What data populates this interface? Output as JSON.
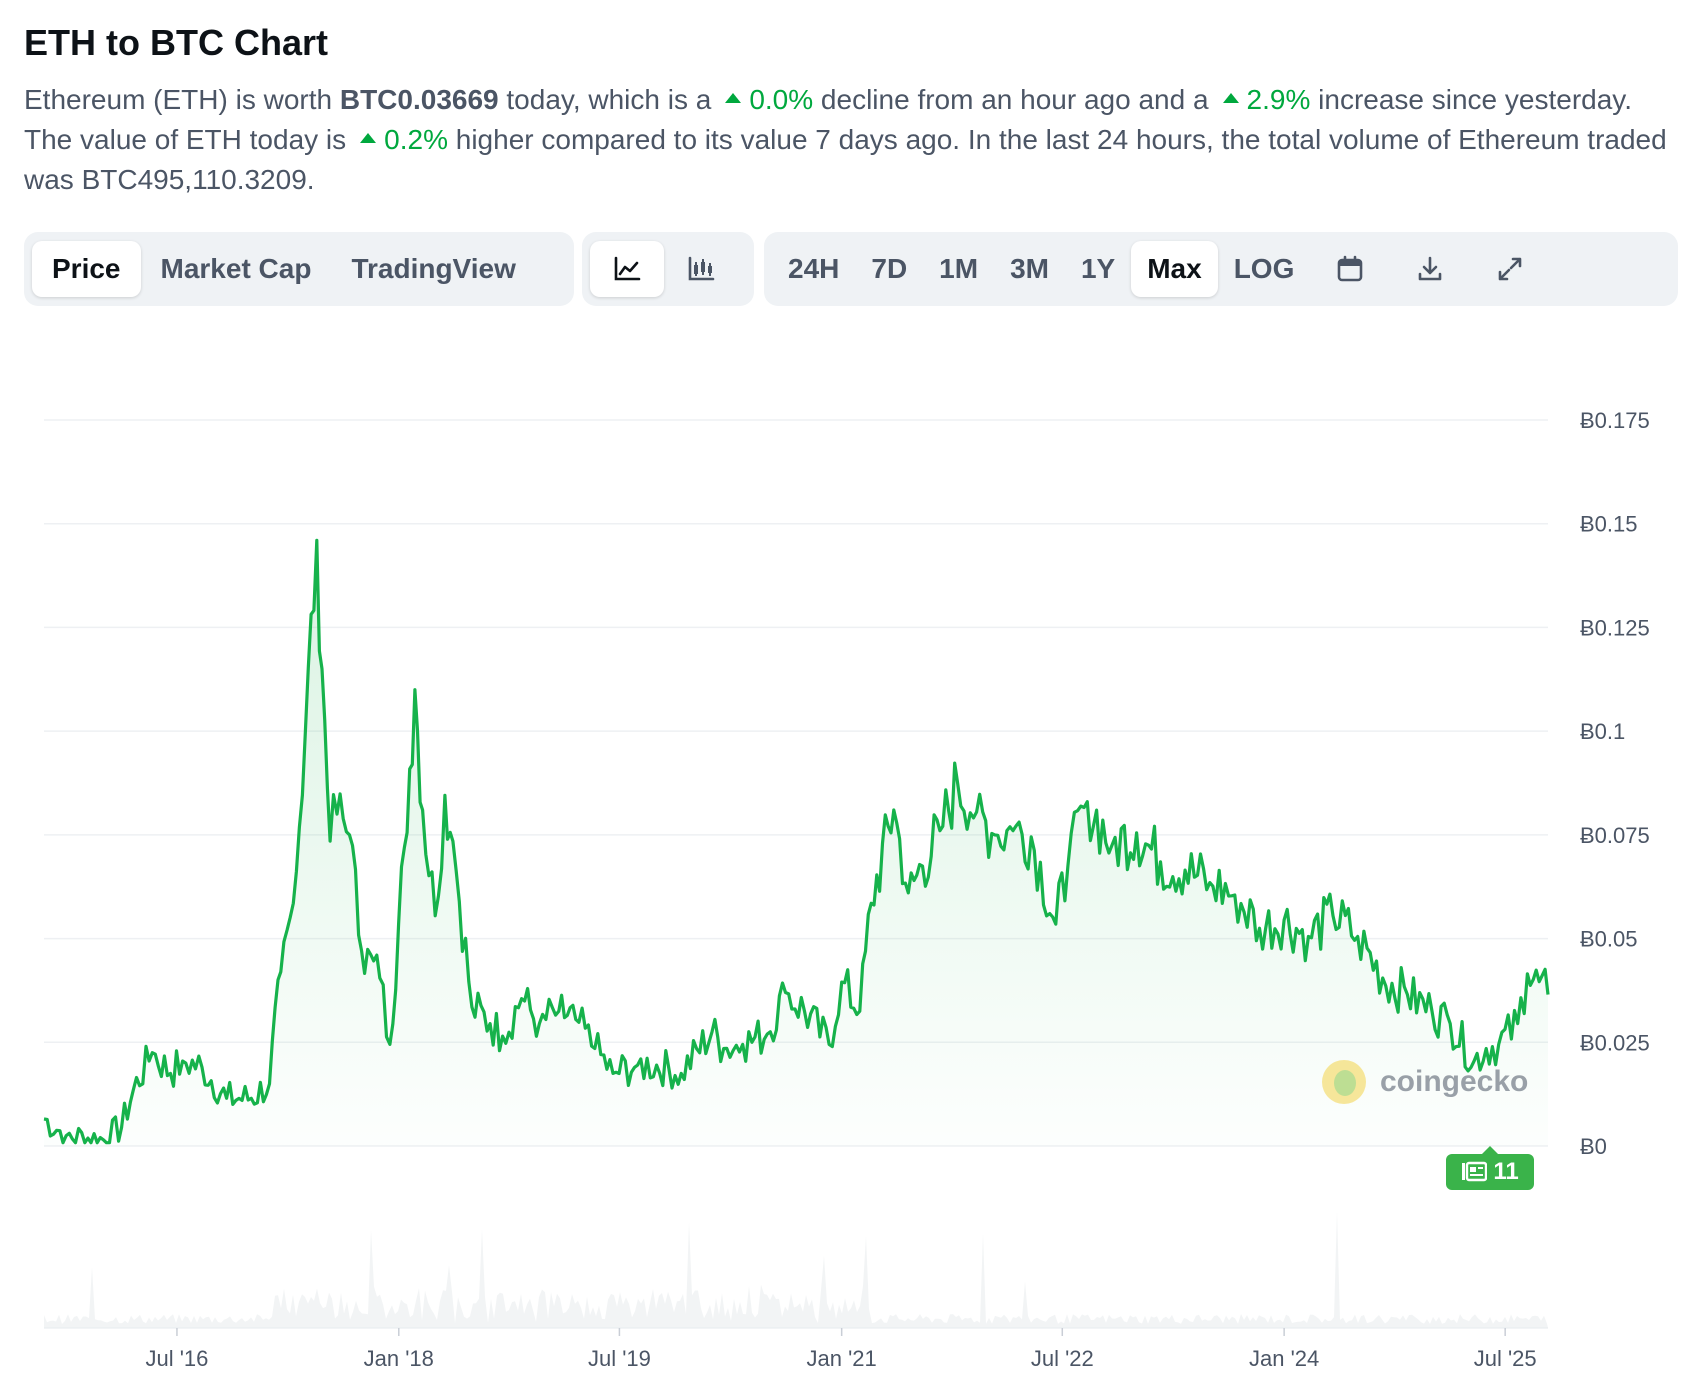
{
  "header": {
    "title": "ETH to BTC Chart",
    "desc": {
      "p1": "Ethereum (ETH) is worth ",
      "price": "BTC0.03669",
      "p2": " today, which is a",
      "hour_pct": "0.0%",
      "p3": " decline from an hour ago and a",
      "day_pct": "2.9%",
      "p4": " increase since yesterday. The value of ETH today is",
      "week_pct": "0.2%",
      "p5": " higher compared to its value 7 days ago. In the last 24 hours, the total volume of Ethereum traded was BTC495,110.3209."
    }
  },
  "toolbar": {
    "view_tabs": [
      "Price",
      "Market Cap",
      "TradingView"
    ],
    "active_view": "Price",
    "chart_types": [
      {
        "name": "line-chart-icon",
        "active": true
      },
      {
        "name": "candlestick-icon",
        "active": false
      }
    ],
    "ranges": [
      "24H",
      "7D",
      "1M",
      "3M",
      "1Y",
      "Max",
      "LOG"
    ],
    "active_range": "Max",
    "icons": [
      "calendar-icon",
      "download-icon",
      "fullscreen-icon"
    ]
  },
  "colors": {
    "line": "#16b24b",
    "accent": "#00a83e",
    "grid": "#eef0f3",
    "badge": "#3ab34a"
  },
  "watermark": "coingecko",
  "news_badge": "11",
  "chart_data": {
    "type": "area",
    "title": "",
    "xlabel": "",
    "ylabel": "",
    "x_range": [
      "2015-08-07",
      "2025-10-15"
    ],
    "ylim": [
      0,
      0.175
    ],
    "y_ticks": [
      0,
      0.025,
      0.05,
      0.075,
      0.1,
      0.125,
      0.15,
      0.175
    ],
    "y_tick_labels": [
      "Ƀ0",
      "Ƀ0.025",
      "Ƀ0.05",
      "Ƀ0.075",
      "Ƀ0.1",
      "Ƀ0.125",
      "Ƀ0.15",
      "Ƀ0.175"
    ],
    "x_ticks": [
      {
        "date": "2016-07-01",
        "label": "Jul '16"
      },
      {
        "date": "2018-01-01",
        "label": "Jan '18"
      },
      {
        "date": "2019-07-01",
        "label": "Jul '19"
      },
      {
        "date": "2021-01-01",
        "label": "Jan '21"
      },
      {
        "date": "2022-07-01",
        "label": "Jul '22"
      },
      {
        "date": "2024-01-01",
        "label": "Jan '24"
      },
      {
        "date": "2025-07-01",
        "label": "Jul '25"
      }
    ],
    "grid": true,
    "series": [
      {
        "name": "",
        "x": [
          "2015-08-07",
          "2015-10-01",
          "2016-01-01",
          "2016-02-15",
          "2016-03-15",
          "2016-05-01",
          "2016-06-15",
          "2016-07-15",
          "2016-09-01",
          "2016-11-01",
          "2017-01-01",
          "2017-02-15",
          "2017-03-15",
          "2017-04-15",
          "2017-05-15",
          "2017-06-12",
          "2017-06-25",
          "2017-07-15",
          "2017-08-01",
          "2017-09-01",
          "2017-10-01",
          "2017-11-15",
          "2017-12-10",
          "2018-01-15",
          "2018-02-10",
          "2018-03-01",
          "2018-04-01",
          "2018-04-25",
          "2018-05-15",
          "2018-07-01",
          "2018-08-15",
          "2018-09-15",
          "2018-11-01",
          "2018-12-15",
          "2019-02-01",
          "2019-03-15",
          "2019-05-01",
          "2019-06-15",
          "2019-08-15",
          "2019-10-01",
          "2019-12-01",
          "2020-02-15",
          "2020-03-15",
          "2020-05-01",
          "2020-07-01",
          "2020-08-15",
          "2020-10-01",
          "2020-12-01",
          "2021-01-01",
          "2021-02-15",
          "2021-03-15",
          "2021-05-10",
          "2021-06-15",
          "2021-07-20",
          "2021-09-01",
          "2021-10-15",
          "2021-12-01",
          "2022-01-15",
          "2022-03-01",
          "2022-04-15",
          "2022-06-15",
          "2022-07-15",
          "2022-09-01",
          "2022-11-01",
          "2023-01-01",
          "2023-03-01",
          "2023-05-01",
          "2023-07-01",
          "2023-09-01",
          "2023-11-01",
          "2024-01-01",
          "2024-03-01",
          "2024-05-01",
          "2024-07-01",
          "2024-09-01",
          "2024-11-01",
          "2025-01-01",
          "2025-02-15",
          "2025-04-15",
          "2025-05-15",
          "2025-06-15",
          "2025-08-01",
          "2025-08-25",
          "2025-10-15"
        ],
        "values": [
          0.0065,
          0.0025,
          0.0015,
          0.0045,
          0.0135,
          0.0225,
          0.0175,
          0.0205,
          0.019,
          0.0115,
          0.0115,
          0.015,
          0.042,
          0.0585,
          0.1,
          0.146,
          0.115,
          0.0735,
          0.08,
          0.075,
          0.047,
          0.0405,
          0.0245,
          0.072,
          0.11,
          0.081,
          0.0555,
          0.0845,
          0.0735,
          0.0335,
          0.0295,
          0.0265,
          0.0355,
          0.0295,
          0.0325,
          0.0305,
          0.0235,
          0.0175,
          0.0195,
          0.0195,
          0.0175,
          0.0275,
          0.0235,
          0.0245,
          0.027,
          0.037,
          0.0325,
          0.0245,
          0.0395,
          0.0325,
          0.0585,
          0.081,
          0.061,
          0.0675,
          0.076,
          0.0875,
          0.0805,
          0.075,
          0.076,
          0.0745,
          0.0535,
          0.0675,
          0.083,
          0.0725,
          0.0755,
          0.0685,
          0.0665,
          0.0635,
          0.0605,
          0.0525,
          0.0545,
          0.0505,
          0.0555,
          0.0505,
          0.0405,
          0.0365,
          0.0325,
          0.0295,
          0.0205,
          0.0235,
          0.0245,
          0.0295,
          0.0415,
          0.0365
        ]
      }
    ]
  }
}
